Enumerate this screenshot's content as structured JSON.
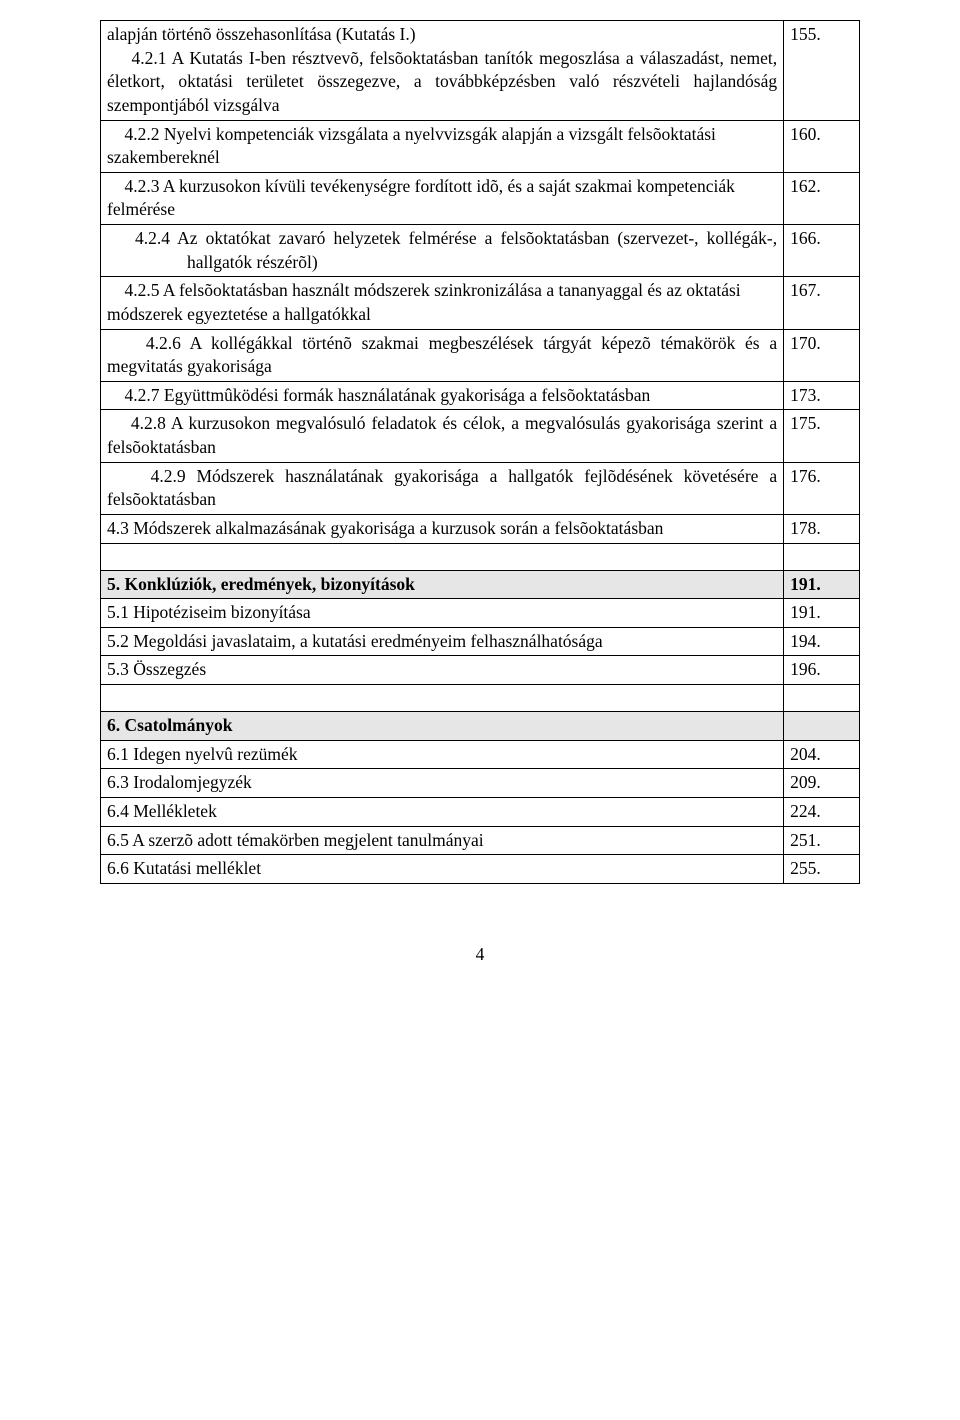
{
  "rows": [
    {
      "text": "alapján történõ összehasonlítása (Kutatás I.)\n    4.2.1 A Kutatás I-ben résztvevõ, felsõoktatásban tanítók megoszlása a válaszadást, nemet, életkort, oktatási területet összegezve, a továbbképzésben való részvételi hajlandóság szempontjából vizsgálva",
      "page": "155.",
      "justify": true
    },
    {
      "text": "    4.2.2 Nyelvi kompetenciák vizsgálata a nyelvvizsgák alapján a vizsgált felsõoktatási szakembereknél",
      "page": "160."
    },
    {
      "text": "    4.2.3 A kurzusokon kívüli tevékenységre fordított idõ, és a saját szakmai kompetenciák felmérése",
      "page": "162."
    },
    {
      "text": "    4.2.4 Az oktatókat zavaró helyzetek felmérése a felsõoktatásban (szervezet-, kollégák-, hallgatók részérõl)",
      "page": "166.",
      "justify": true,
      "hanging": true
    },
    {
      "text": "    4.2.5 A felsõoktatásban használt módszerek szinkronizálása a tananyaggal és az oktatási módszerek egyeztetése a hallgatókkal",
      "page": "167."
    },
    {
      "text": "    4.2.6 A kollégákkal történõ szakmai megbeszélések tárgyát képezõ témakörök és a megvitatás gyakorisága",
      "page": "170.",
      "justify": true
    },
    {
      "text": "    4.2.7 Együttmûködési formák használatának gyakorisága a felsõoktatásban",
      "page": "173."
    },
    {
      "text": "    4.2.8 A kurzusokon megvalósuló feladatok és célok, a megvalósulás gyakorisága szerint a felsõoktatásban",
      "page": "175.",
      "justify": true
    },
    {
      "text": "    4.2.9 Módszerek használatának gyakorisága a hallgatók fejlõdésének követésére a felsõoktatásban",
      "page": "176.",
      "justify": true
    },
    {
      "text": "4.3 Módszerek alkalmazásának gyakorisága a kurzusok során a felsõoktatásban",
      "page": "178.",
      "justify": true
    },
    {
      "spacer": true
    },
    {
      "text": "5. Konklúziók, eredmények, bizonyítások",
      "page": "191.",
      "header": true
    },
    {
      "text": "5.1 Hipotéziseim bizonyítása",
      "page": "191."
    },
    {
      "text": "5.2 Megoldási javaslataim, a kutatási eredményeim felhasználhatósága",
      "page": "194."
    },
    {
      "text": "5.3 Összegzés",
      "page": "196."
    },
    {
      "spacer": true
    },
    {
      "text": "6. Csatolmányok",
      "page": "",
      "header": true
    },
    {
      "text": "6.1 Idegen nyelvû rezümék",
      "page": "204."
    },
    {
      "text": "6.3 Irodalomjegyzék",
      "page": "209."
    },
    {
      "text": "6.4 Mellékletek",
      "page": "224."
    },
    {
      "text": "6.5 A szerzõ adott témakörben megjelent tanulmányai",
      "page": "251."
    },
    {
      "text": "6.6 Kutatási melléklet",
      "page": "255."
    }
  ],
  "pageNumber": "4",
  "colors": {
    "headerBg": "#e6e6e6",
    "border": "#000000",
    "text": "#000000",
    "pageBg": "#ffffff"
  },
  "font": {
    "family": "Times New Roman",
    "size_pt": 13
  }
}
